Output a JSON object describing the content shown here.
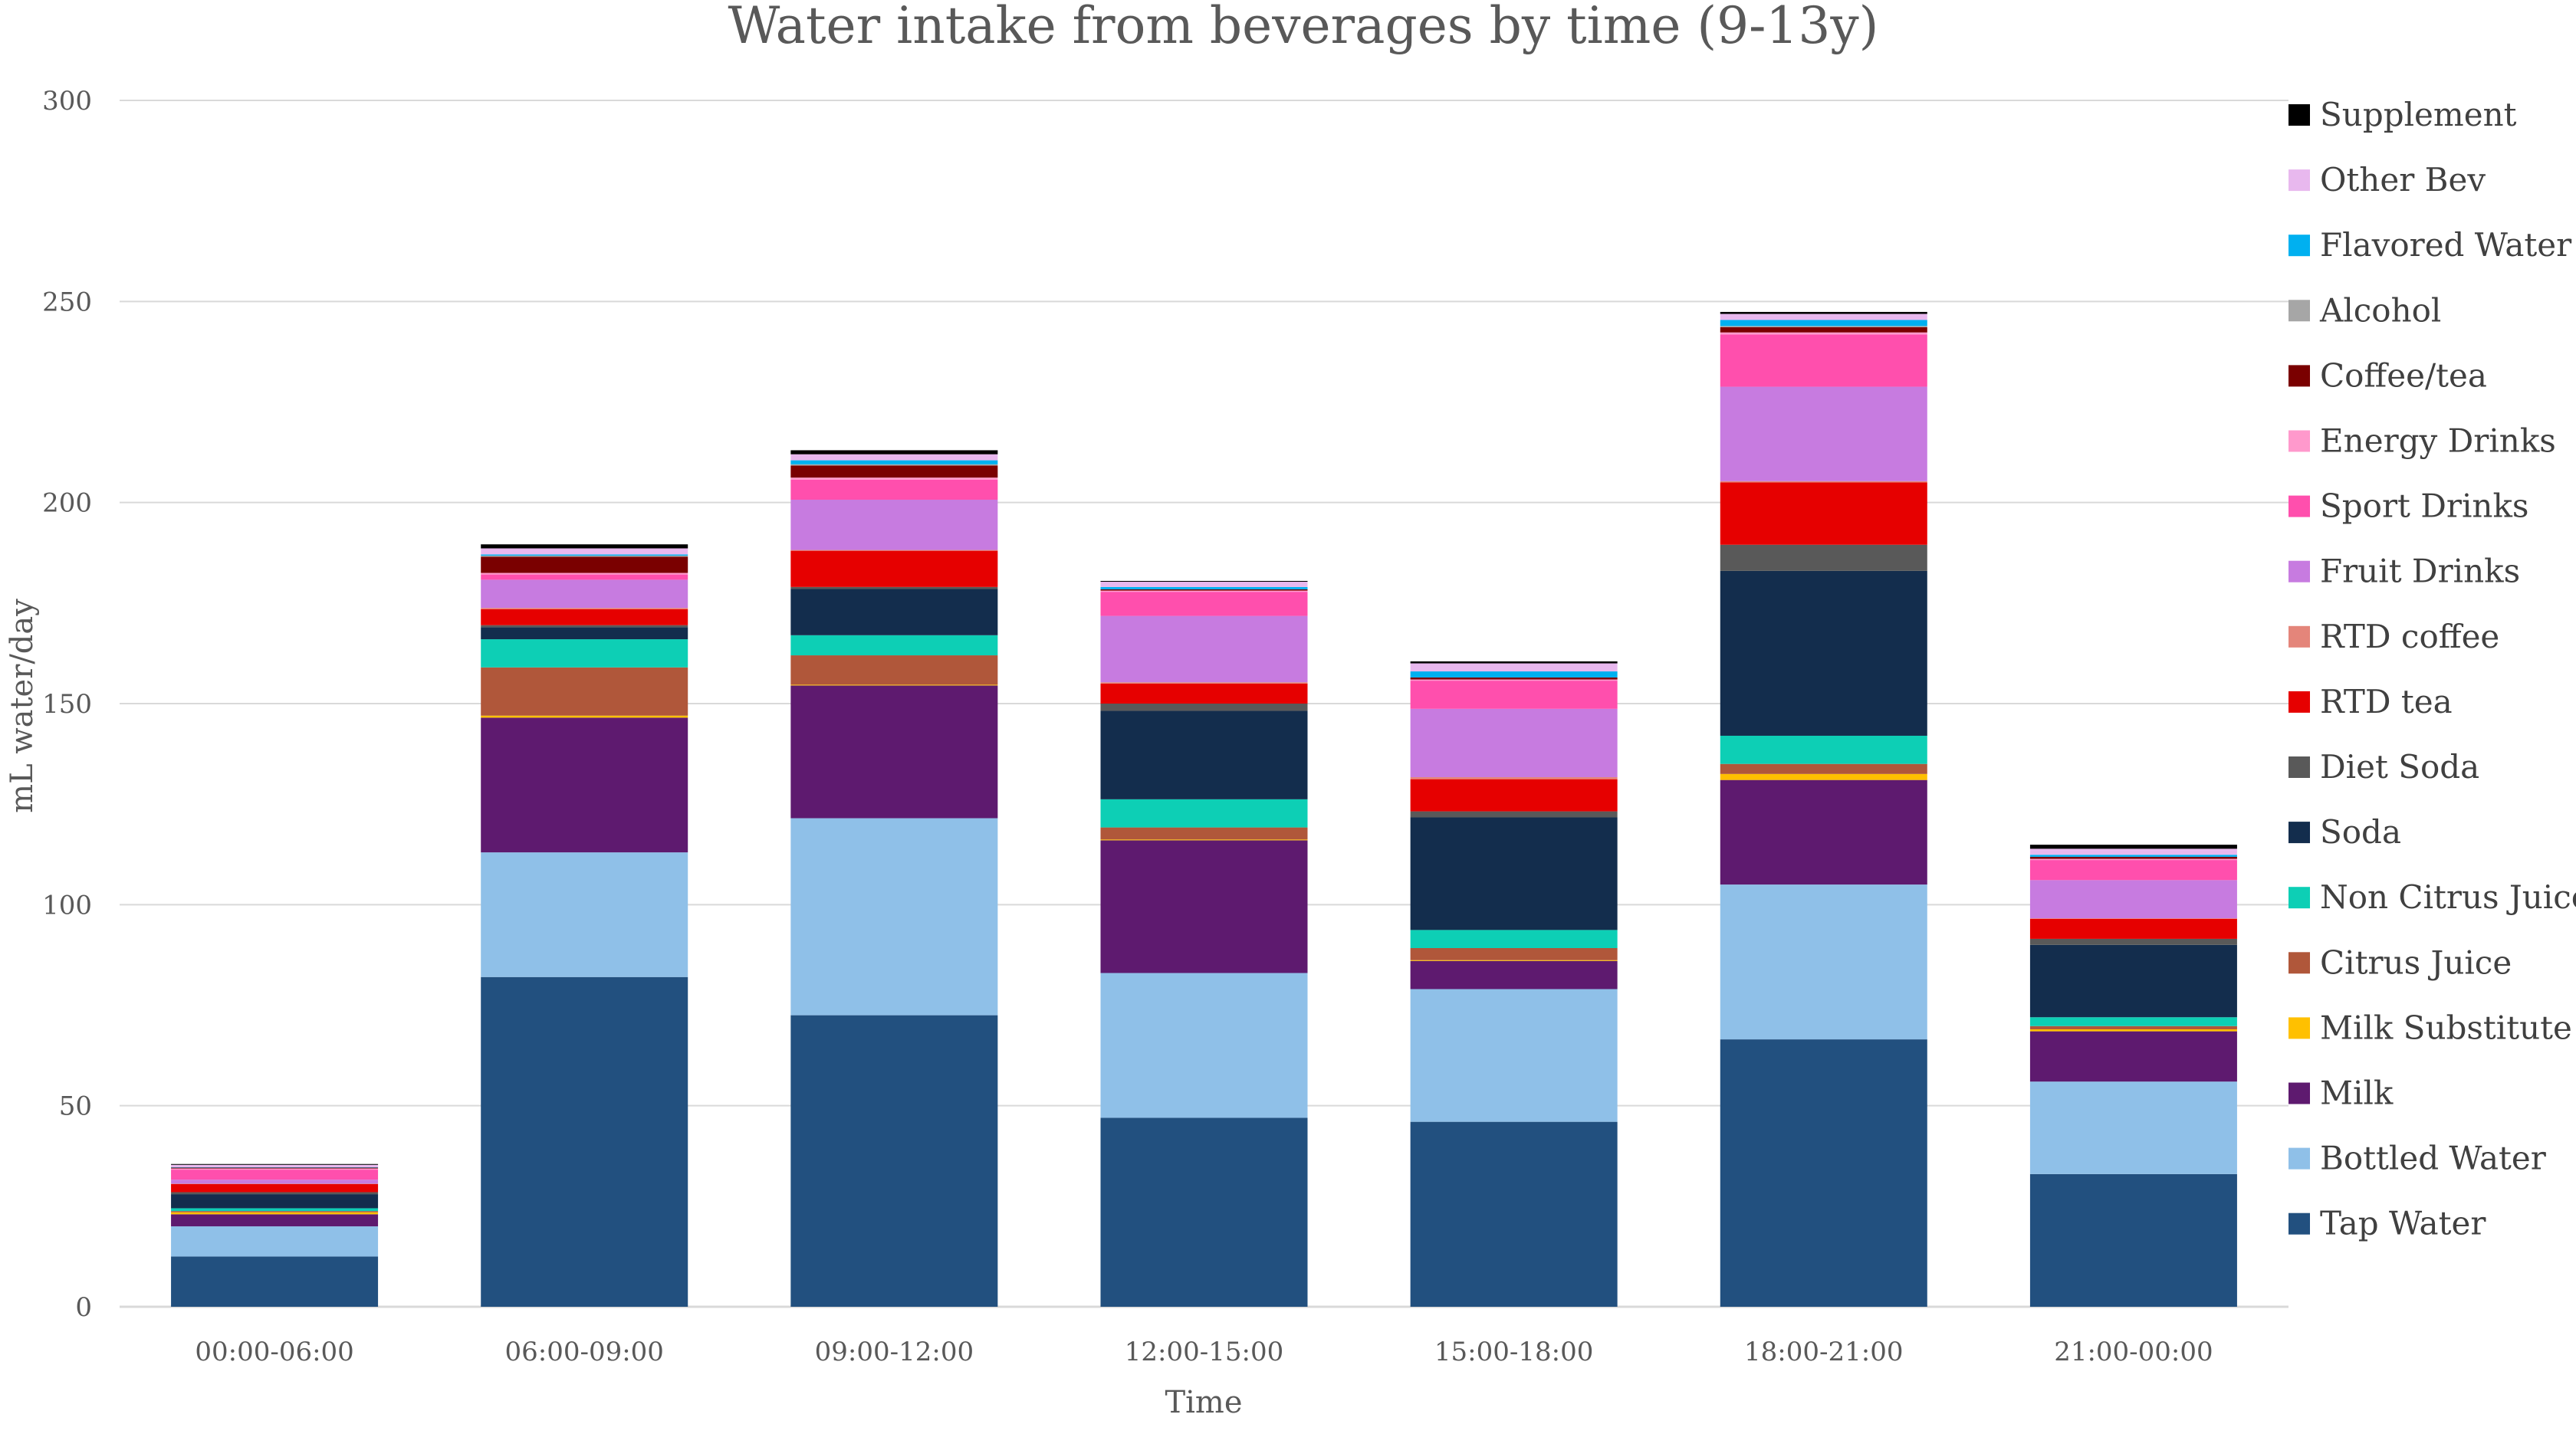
{
  "chart_data": {
    "type": "bar",
    "stacked": true,
    "title": "Water intake from beverages by time (9-13y)",
    "xlabel": "Time",
    "ylabel": "mL water/day",
    "ylim": [
      0,
      300
    ],
    "yticks": [
      0,
      50,
      100,
      150,
      200,
      250,
      300
    ],
    "grid": true,
    "legend_position": "right",
    "categories": [
      "00:00-06:00",
      "06:00-09:00",
      "09:00-12:00",
      "12:00-15:00",
      "15:00-18:00",
      "18:00-21:00",
      "21:00-00:00"
    ],
    "series": [
      {
        "name": "Tap Water",
        "color": "#22507f",
        "values": [
          12.5,
          82,
          72.5,
          47,
          46,
          66.5,
          33
        ]
      },
      {
        "name": "Bottled Water",
        "color": "#8fc0e8",
        "values": [
          7.5,
          31,
          49,
          36,
          33,
          38.5,
          23
        ]
      },
      {
        "name": "Milk",
        "color": "#5e1a6f",
        "values": [
          3,
          33.5,
          33,
          33,
          7,
          26,
          12.5
        ]
      },
      {
        "name": "Milk Substitute",
        "color": "#ffc000",
        "values": [
          0.5,
          0.5,
          0.2,
          0.2,
          0.2,
          1.5,
          0.5
        ]
      },
      {
        "name": "Citrus Juice",
        "color": "#b0573a",
        "values": [
          0.3,
          12,
          7.3,
          3,
          3,
          2.5,
          0.8
        ]
      },
      {
        "name": "Non Citrus Juice",
        "color": "#0dcfb5",
        "values": [
          0.7,
          7,
          5,
          7,
          4.5,
          7,
          2.2
        ]
      },
      {
        "name": "Soda",
        "color": "#132d4d",
        "values": [
          3.5,
          3,
          11.5,
          22,
          28,
          41,
          18
        ]
      },
      {
        "name": "Diet Soda",
        "color": "#595959",
        "values": [
          0.5,
          0.5,
          0.5,
          1.8,
          1.5,
          6.5,
          1.5
        ]
      },
      {
        "name": "RTD tea",
        "color": "#e60000",
        "values": [
          2,
          4,
          9,
          5,
          8,
          15.5,
          5
        ]
      },
      {
        "name": "RTD coffee",
        "color": "#e4857a",
        "values": [
          0.1,
          0.3,
          0.2,
          0.3,
          0.5,
          0.3,
          0.1
        ]
      },
      {
        "name": "Fruit Drinks",
        "color": "#c77be0",
        "values": [
          1,
          7,
          12.5,
          16.5,
          17,
          23.5,
          9.5
        ]
      },
      {
        "name": "Sport Drinks",
        "color": "#ff4fad",
        "values": [
          2.5,
          1.3,
          5,
          6,
          7,
          13,
          5
        ]
      },
      {
        "name": "Energy Drinks",
        "color": "#ff99cc",
        "values": [
          0.3,
          0.4,
          0.5,
          0.3,
          0.3,
          0.5,
          0.3
        ]
      },
      {
        "name": "Coffee/tea",
        "color": "#7a0000",
        "values": [
          0.2,
          4,
          3,
          0.3,
          0.5,
          1.3,
          0.5
        ]
      },
      {
        "name": "Alcohol",
        "color": "#a6a6a6",
        "values": [
          0,
          0.3,
          0.3,
          0,
          0,
          0.3,
          0
        ]
      },
      {
        "name": "Flavored Water",
        "color": "#00b0f0",
        "values": [
          0.1,
          0.3,
          1,
          0.6,
          1.5,
          1.5,
          0.5
        ]
      },
      {
        "name": "Other Bev",
        "color": "#e8b8ee",
        "values": [
          0.6,
          1.5,
          1.5,
          1.3,
          2,
          1.5,
          1.5
        ]
      },
      {
        "name": "Supplement",
        "color": "#000000",
        "values": [
          0.2,
          1,
          1,
          0.2,
          0.5,
          0.5,
          1
        ]
      }
    ]
  }
}
